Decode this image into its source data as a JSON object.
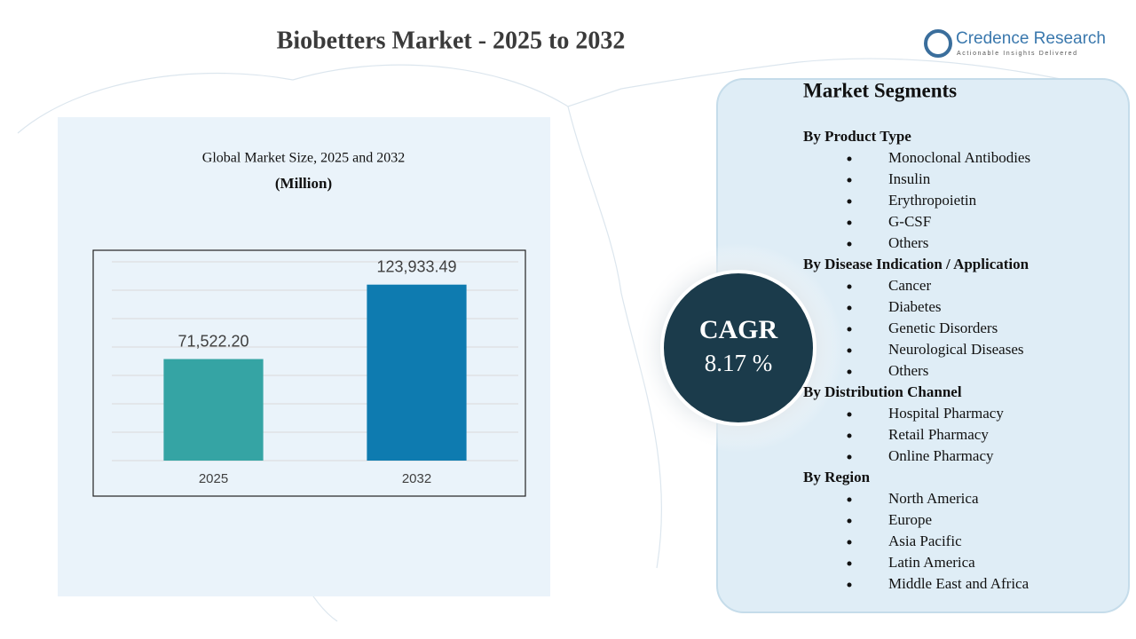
{
  "title": "Biobetters Market - 2025 to 2032",
  "logo": {
    "name": "Credence Research",
    "tagline": "Actionable Insights Delivered"
  },
  "chart_data": {
    "type": "bar",
    "title": "Global Market Size, 2025 and 2032",
    "subtitle": "(Million)",
    "categories": [
      "2025",
      "2032"
    ],
    "values": [
      71522.2,
      123933.49
    ],
    "value_labels": [
      "71,522.20",
      "123,933.49"
    ],
    "colors": [
      "#35a4a4",
      "#0e7bb0"
    ],
    "ylim": [
      0,
      140000
    ],
    "yticks": [
      0,
      20000,
      40000,
      60000,
      80000,
      100000,
      120000,
      140000
    ],
    "grid": true
  },
  "cagr": {
    "label": "CAGR",
    "value": "8.17 %"
  },
  "segments": {
    "title": "Market Segments",
    "groups": [
      {
        "heading": "By Product  Type",
        "items": [
          "Monoclonal Antibodies",
          "Insulin",
          "Erythropoietin",
          "G-CSF",
          "Others"
        ]
      },
      {
        "heading": "By Disease Indication  / Application",
        "items": [
          "Cancer",
          "Diabetes",
          "Genetic Disorders",
          "Neurological Diseases",
          "Others"
        ]
      },
      {
        "heading": "By Distribution  Channel",
        "items": [
          "Hospital Pharmacy",
          "Retail Pharmacy",
          "Online Pharmacy"
        ]
      },
      {
        "heading": "By Region",
        "items": [
          "North America",
          "Europe",
          "Asia Pacific",
          "Latin America",
          "Middle East and Africa"
        ]
      }
    ]
  }
}
